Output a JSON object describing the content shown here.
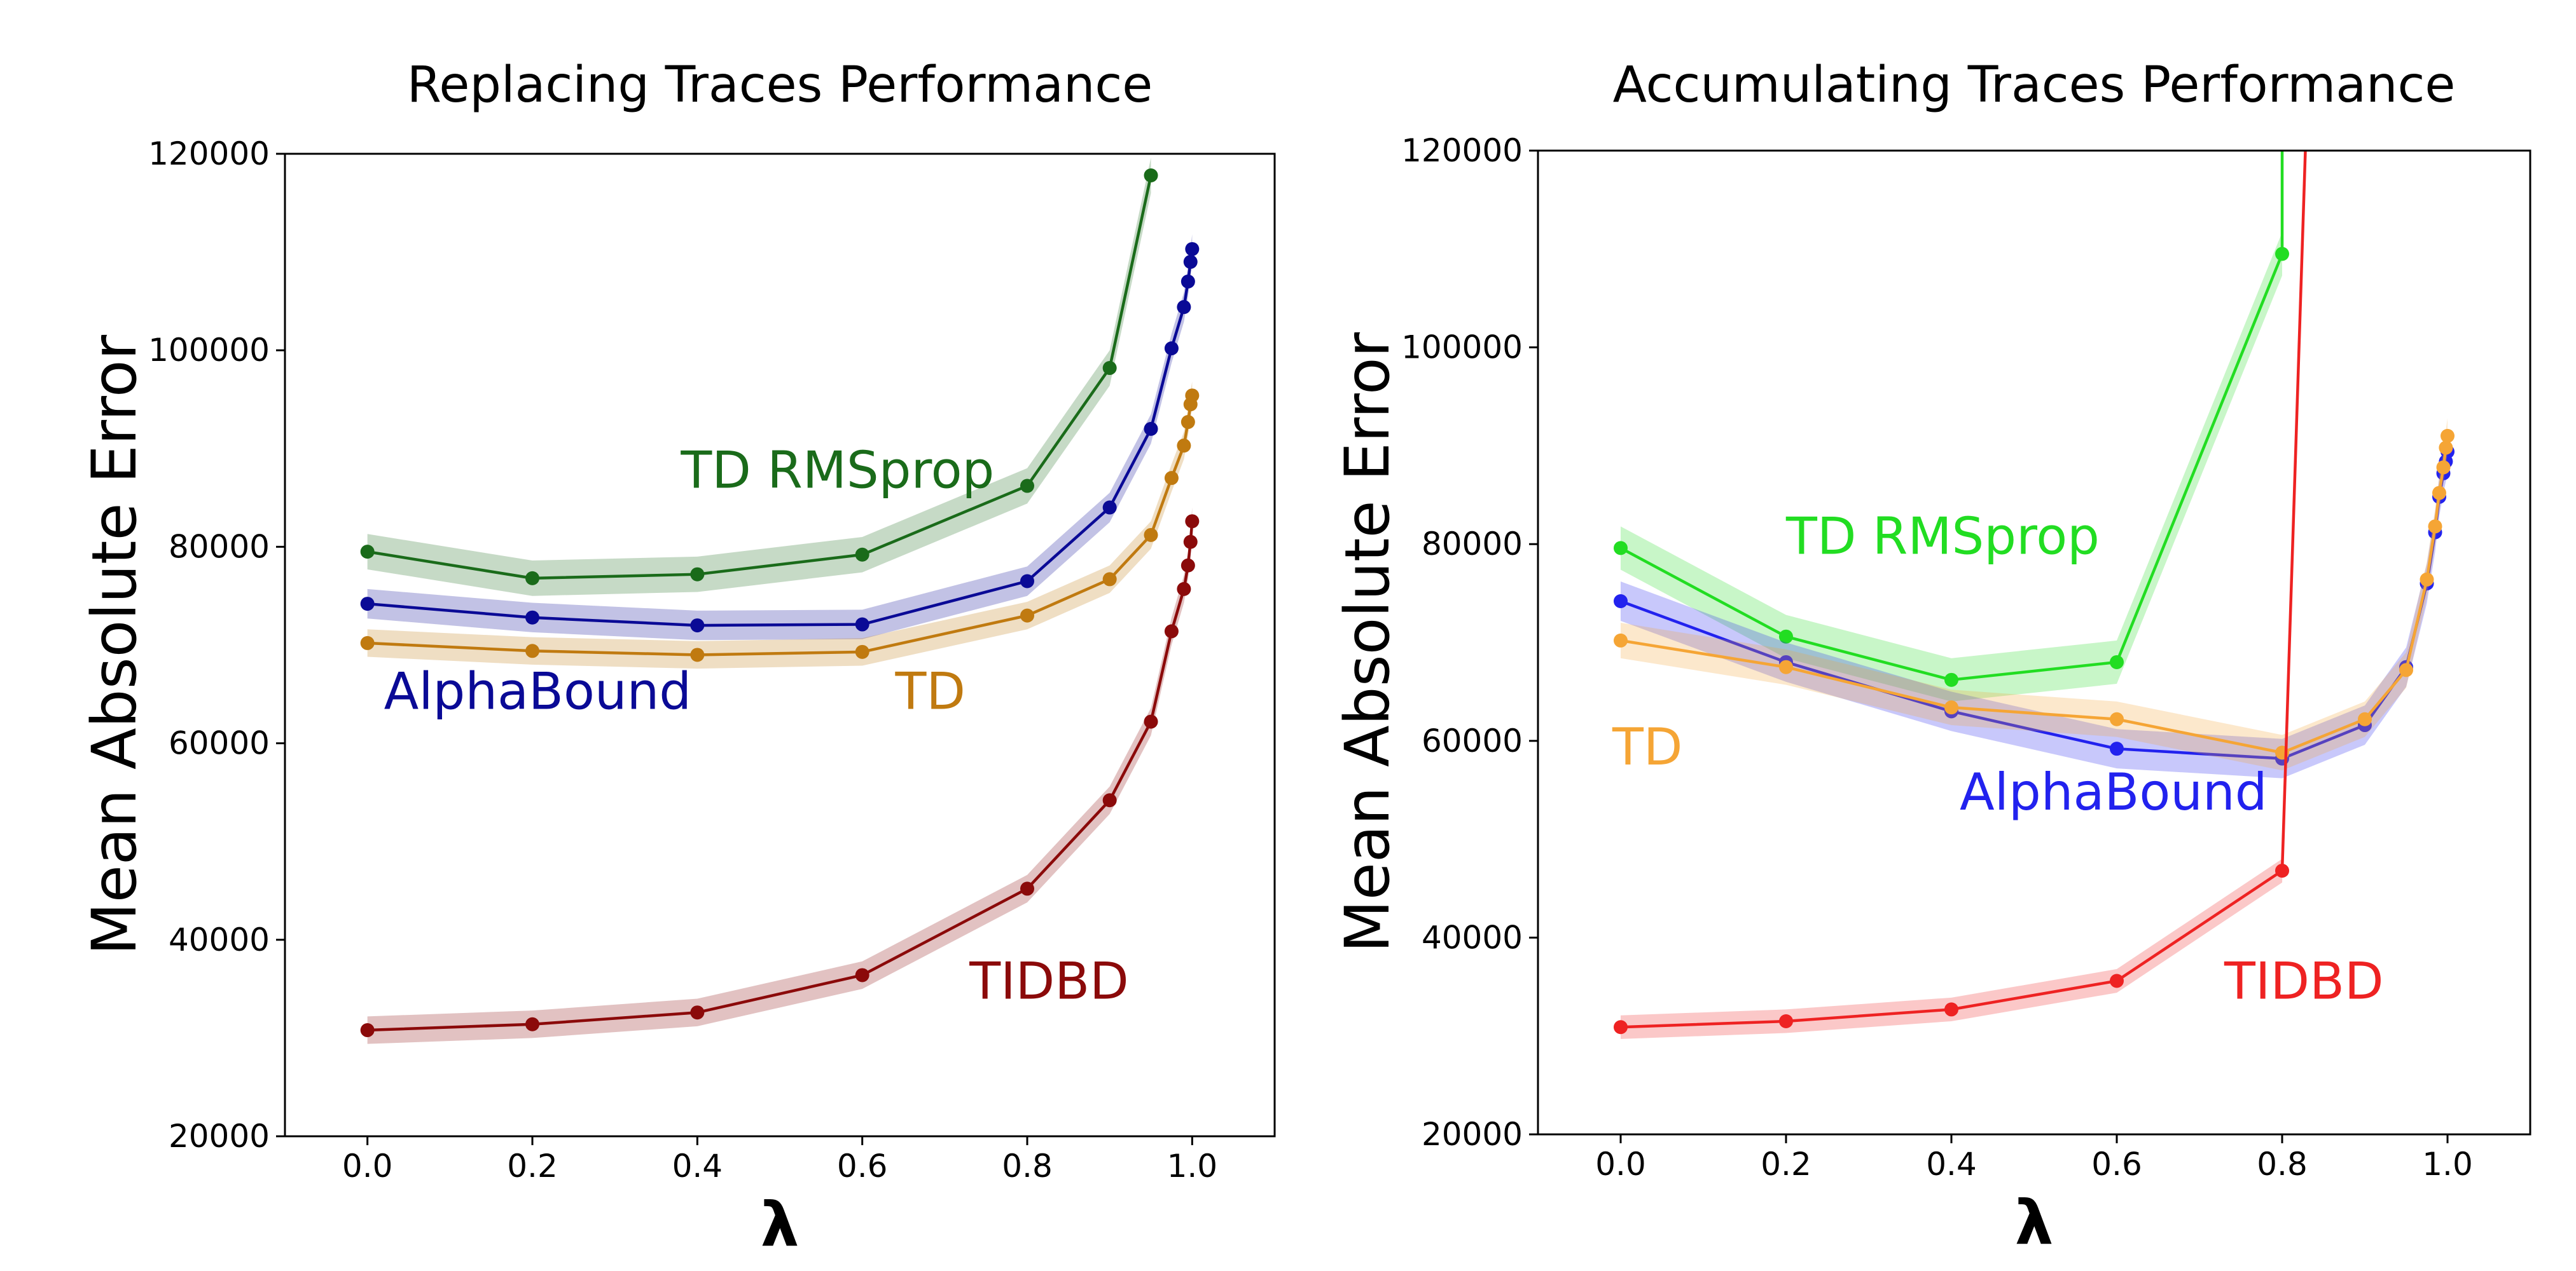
{
  "chart_data": [
    {
      "type": "line",
      "title": "Replacing Traces Performance",
      "xlabel": "λ",
      "ylabel": "Mean Absolute Error",
      "xlim": [
        -0.1,
        1.1
      ],
      "ylim": [
        20000,
        120000
      ],
      "xticks": [
        "0.0",
        "0.2",
        "0.4",
        "0.6",
        "0.8",
        "1.0"
      ],
      "yticks": [
        "20000",
        "40000",
        "60000",
        "80000",
        "100000",
        "120000"
      ],
      "grid": false,
      "series": [
        {
          "name": "TD RMSprop",
          "color": "#1a6b1a",
          "x": [
            0.0,
            0.2,
            0.4,
            0.6,
            0.8,
            0.9,
            0.95
          ],
          "y": [
            79500,
            76800,
            77200,
            79200,
            86200,
            98200,
            117800
          ],
          "band": 1800,
          "label_x": 0.38,
          "label_y": 86000
        },
        {
          "name": "AlphaBound",
          "color": "#0a0a96",
          "x": [
            0.0,
            0.2,
            0.4,
            0.6,
            0.8,
            0.9,
            0.95,
            0.975,
            0.99,
            0.995,
            0.998,
            1.0
          ],
          "y": [
            74200,
            72800,
            72000,
            72100,
            76500,
            84000,
            92000,
            100200,
            104400,
            107000,
            109000,
            110300
          ],
          "band": 1500,
          "label_x": 0.02,
          "label_y": 63500
        },
        {
          "name": "TD",
          "color": "#c07a10",
          "x": [
            0.0,
            0.2,
            0.4,
            0.6,
            0.8,
            0.9,
            0.95,
            0.975,
            0.99,
            0.995,
            0.998,
            1.0
          ],
          "y": [
            70200,
            69400,
            69000,
            69300,
            73000,
            76700,
            81200,
            87000,
            90300,
            92700,
            94500,
            95400
          ],
          "band": 1400,
          "label_x": 0.64,
          "label_y": 63500
        },
        {
          "name": "TIDBD",
          "color": "#8b0a0a",
          "x": [
            0.0,
            0.2,
            0.4,
            0.6,
            0.8,
            0.9,
            0.95,
            0.975,
            0.99,
            0.995,
            0.998,
            1.0
          ],
          "y": [
            30800,
            31400,
            32600,
            36400,
            45200,
            54200,
            62200,
            71400,
            75700,
            78100,
            80500,
            82600
          ],
          "band": 1400,
          "label_x": 0.73,
          "label_y": 34000
        }
      ]
    },
    {
      "type": "line",
      "title": "Accumulating Traces Performance",
      "xlabel": "λ",
      "ylabel": "Mean Absolute Error",
      "xlim": [
        -0.1,
        1.1
      ],
      "ylim": [
        20000,
        120000
      ],
      "xticks": [
        "0.0",
        "0.2",
        "0.4",
        "0.6",
        "0.8",
        "1.0"
      ],
      "yticks": [
        "20000",
        "40000",
        "60000",
        "80000",
        "100000",
        "120000"
      ],
      "grid": false,
      "series": [
        {
          "name": "TD RMSprop",
          "color": "#22dd22",
          "x": [
            0.0,
            0.2,
            0.4,
            0.6,
            0.8,
            0.8
          ],
          "y": [
            79600,
            70600,
            66200,
            68000,
            109500,
            125000
          ],
          "band": 2200,
          "label_x": 0.2,
          "label_y": 79000
        },
        {
          "name": "AlphaBound",
          "color": "#2222ee",
          "x": [
            0.0,
            0.2,
            0.4,
            0.6,
            0.8,
            0.9,
            0.95,
            0.975,
            0.985,
            0.99,
            0.995,
            0.998,
            1.0
          ],
          "y": [
            74200,
            68000,
            63000,
            59200,
            58200,
            61600,
            67500,
            76000,
            81200,
            84800,
            87200,
            88400,
            89400
          ],
          "band": 2000,
          "label_x": 0.41,
          "label_y": 53000
        },
        {
          "name": "TD",
          "color": "#f5a535",
          "x": [
            0.0,
            0.2,
            0.4,
            0.6,
            0.8,
            0.9,
            0.95,
            0.975,
            0.985,
            0.99,
            0.995,
            0.998,
            1.0
          ],
          "y": [
            70200,
            67500,
            63400,
            62200,
            58800,
            62200,
            67200,
            76400,
            81800,
            85200,
            87800,
            89800,
            91000
          ],
          "band": 1800,
          "label_x": -0.01,
          "label_y": 57600
        },
        {
          "name": "TIDBD",
          "color": "#ee2222",
          "x": [
            0.0,
            0.2,
            0.4,
            0.6,
            0.8,
            0.83
          ],
          "y": [
            30900,
            31500,
            32700,
            35600,
            46800,
            125000
          ],
          "band": 1200,
          "label_x": 0.73,
          "label_y": 33800
        }
      ]
    }
  ]
}
